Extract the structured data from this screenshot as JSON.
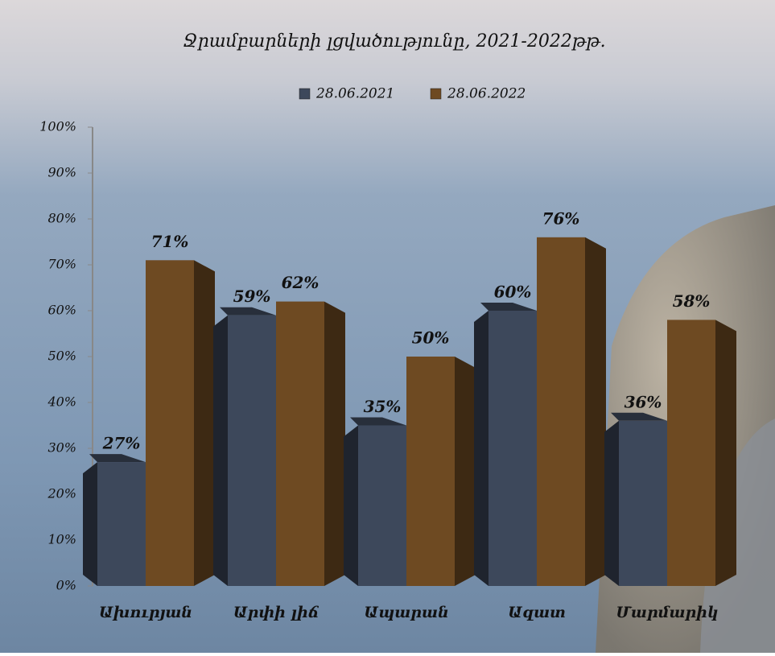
{
  "chart_data": {
    "type": "bar",
    "title": "Ջրամբարների լցվածությունը,  2021-2022թթ.",
    "categories": [
      "Ախուրյան",
      "Արփի լիճ",
      "Ապարան",
      "Ազատ",
      "Մարմարիկ"
    ],
    "series": [
      {
        "name": "28.06.2021",
        "color": "#3d485b",
        "values": [
          27,
          59,
          35,
          60,
          36
        ],
        "value_labels": [
          "27%",
          "59%",
          "35%",
          "60%",
          "36%"
        ]
      },
      {
        "name": "28.06.2022",
        "color": "#6e4a22",
        "values": [
          71,
          62,
          50,
          76,
          58
        ],
        "value_labels": [
          "71%",
          "62%",
          "50%",
          "76%",
          "58%"
        ]
      }
    ],
    "ylim": [
      0,
      100
    ],
    "yticks": [
      {
        "value": 0,
        "label": "0%"
      },
      {
        "value": 10,
        "label": "10%"
      },
      {
        "value": 20,
        "label": "20%"
      },
      {
        "value": 30,
        "label": "30%"
      },
      {
        "value": 40,
        "label": "40%"
      },
      {
        "value": 50,
        "label": "50%"
      },
      {
        "value": 60,
        "label": "60%"
      },
      {
        "value": 70,
        "label": "70%"
      },
      {
        "value": 80,
        "label": "80%"
      },
      {
        "value": 90,
        "label": "90%"
      },
      {
        "value": 100,
        "label": "100%"
      }
    ]
  }
}
